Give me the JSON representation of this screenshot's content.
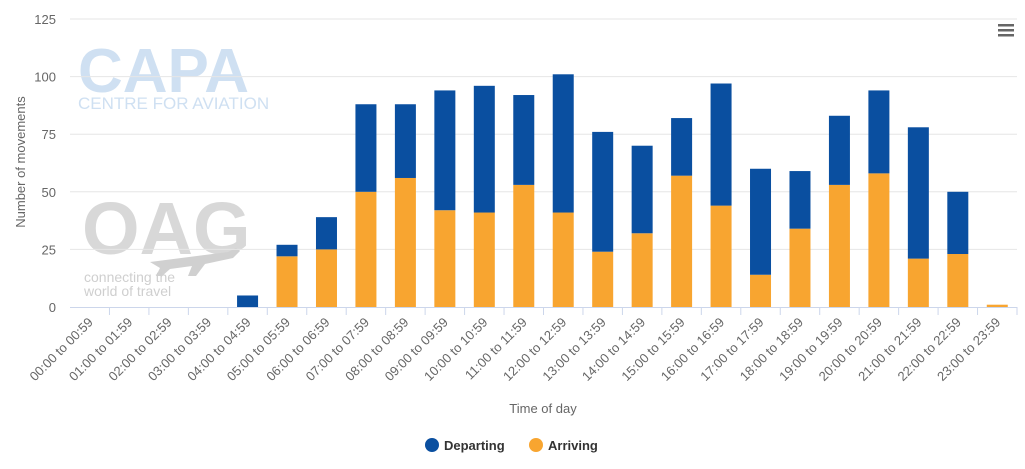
{
  "chart_data": {
    "type": "bar",
    "stacked": true,
    "categories": [
      "00:00 to 00:59",
      "01:00 to 01:59",
      "02:00 to 02:59",
      "03:00 to 03:59",
      "04:00 to 04:59",
      "05:00 to 05:59",
      "06:00 to 06:59",
      "07:00 to 07:59",
      "08:00 to 08:59",
      "09:00 to 09:59",
      "10:00 to 10:59",
      "11:00 to 11:59",
      "12:00 to 12:59",
      "13:00 to 13:59",
      "14:00 to 14:59",
      "15:00 to 15:59",
      "16:00 to 16:59",
      "17:00 to 17:59",
      "18:00 to 18:59",
      "19:00 to 19:59",
      "20:00 to 20:59",
      "21:00 to 21:59",
      "22:00 to 22:59",
      "23:00 to 23:59"
    ],
    "series": [
      {
        "name": "Departing",
        "color": "#0a4fa0",
        "values": [
          0,
          0,
          0,
          0,
          5,
          5,
          14,
          38,
          32,
          52,
          55,
          39,
          60,
          52,
          38,
          25,
          53,
          46,
          25,
          30,
          36,
          57,
          27,
          0
        ]
      },
      {
        "name": "Arriving",
        "color": "#f8a530",
        "values": [
          0,
          0,
          0,
          0,
          0,
          22,
          25,
          50,
          56,
          42,
          41,
          53,
          41,
          24,
          32,
          57,
          44,
          14,
          34,
          53,
          58,
          21,
          23,
          1
        ]
      }
    ],
    "stack_order": [
      "Arriving",
      "Departing"
    ],
    "xlabel": "Time of day",
    "ylabel": "Number of movements",
    "ylim": [
      0,
      125
    ],
    "yticks": [
      0,
      25,
      50,
      75,
      100,
      125
    ],
    "grid": true,
    "legend": "bottom-center"
  },
  "watermarks": {
    "capa_title": "CAPA",
    "capa_subtitle": "CENTRE FOR AVIATION",
    "oag_title": "OAG",
    "oag_line1": "connecting the",
    "oag_line2": "world of travel"
  },
  "menu_icon": "hamburger-menu-icon"
}
